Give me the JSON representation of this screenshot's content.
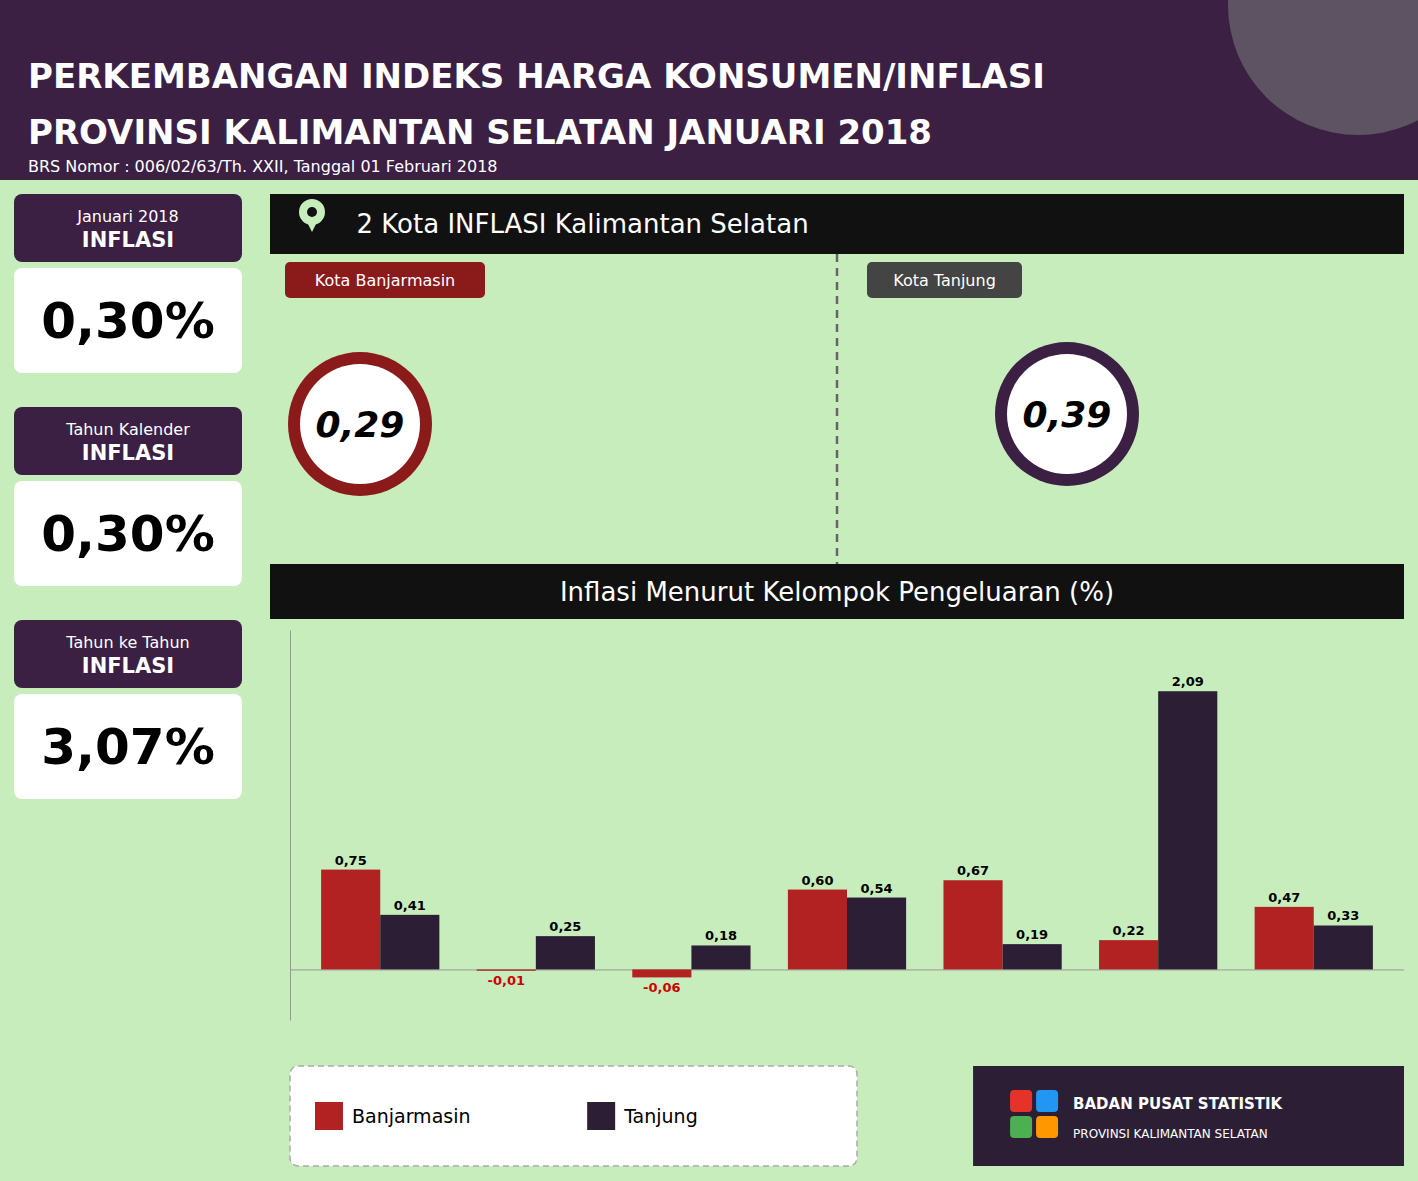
{
  "chart_data": {
    "type": "bar",
    "title": "Inflasi Menurut Kelompok Pengeluaran (%)",
    "annotations": [
      "PERKEMBANGAN INDEKS HARGA KONSUMEN/INFLASI",
      "PROVINSI KALIMANTAN SELATAN JANUARI 2018",
      "BRS Nomor : 006/02/63/Th. XXII, Tanggal 01 Februari 2018",
      "Januari 2018",
      "Tahun Kalender",
      "Tahun ke Tahun",
      "INFLASI",
      "INFLASI",
      "INFLASI",
      "0,30%",
      "0,30%",
      "3,07%",
      "  2 Kota INFLASI Kalimantan Selatan",
      "Kota Banjarmasin",
      "0,29",
      "Kota Tanjung",
      "0,39",
      "BADAN PUSAT STATISTIK",
      "PROVINSI KALIMANTAN SELATAN"
    ],
    "categories": [
      null,
      null,
      null,
      null,
      null,
      null,
      null
    ],
    "series": [
      {
        "name": "Banjarmasin",
        "color": "#b22222",
        "values": [
          0.75,
          -0.01,
          -0.06,
          0.6,
          0.67,
          0.22,
          0.47
        ],
        "value_labels": [
          "0,75",
          "-0,01",
          "-0,06",
          "0,60",
          "0,67",
          "0,22",
          "0,47"
        ]
      },
      {
        "name": "Tanjung",
        "color": "#2c1f35",
        "values": [
          0.41,
          0.25,
          0.18,
          0.54,
          0.19,
          2.09,
          0.33
        ],
        "value_labels": [
          "0,41",
          "0,25",
          "0,18",
          "0,54",
          "0,19",
          "2,09",
          "0,33"
        ]
      }
    ],
    "ylim": [
      -0.38,
      2.55
    ],
    "yticks": [
      0
    ],
    "tick_labels": false,
    "grid": false,
    "data_labels": true,
    "legend": "bottom"
  }
}
